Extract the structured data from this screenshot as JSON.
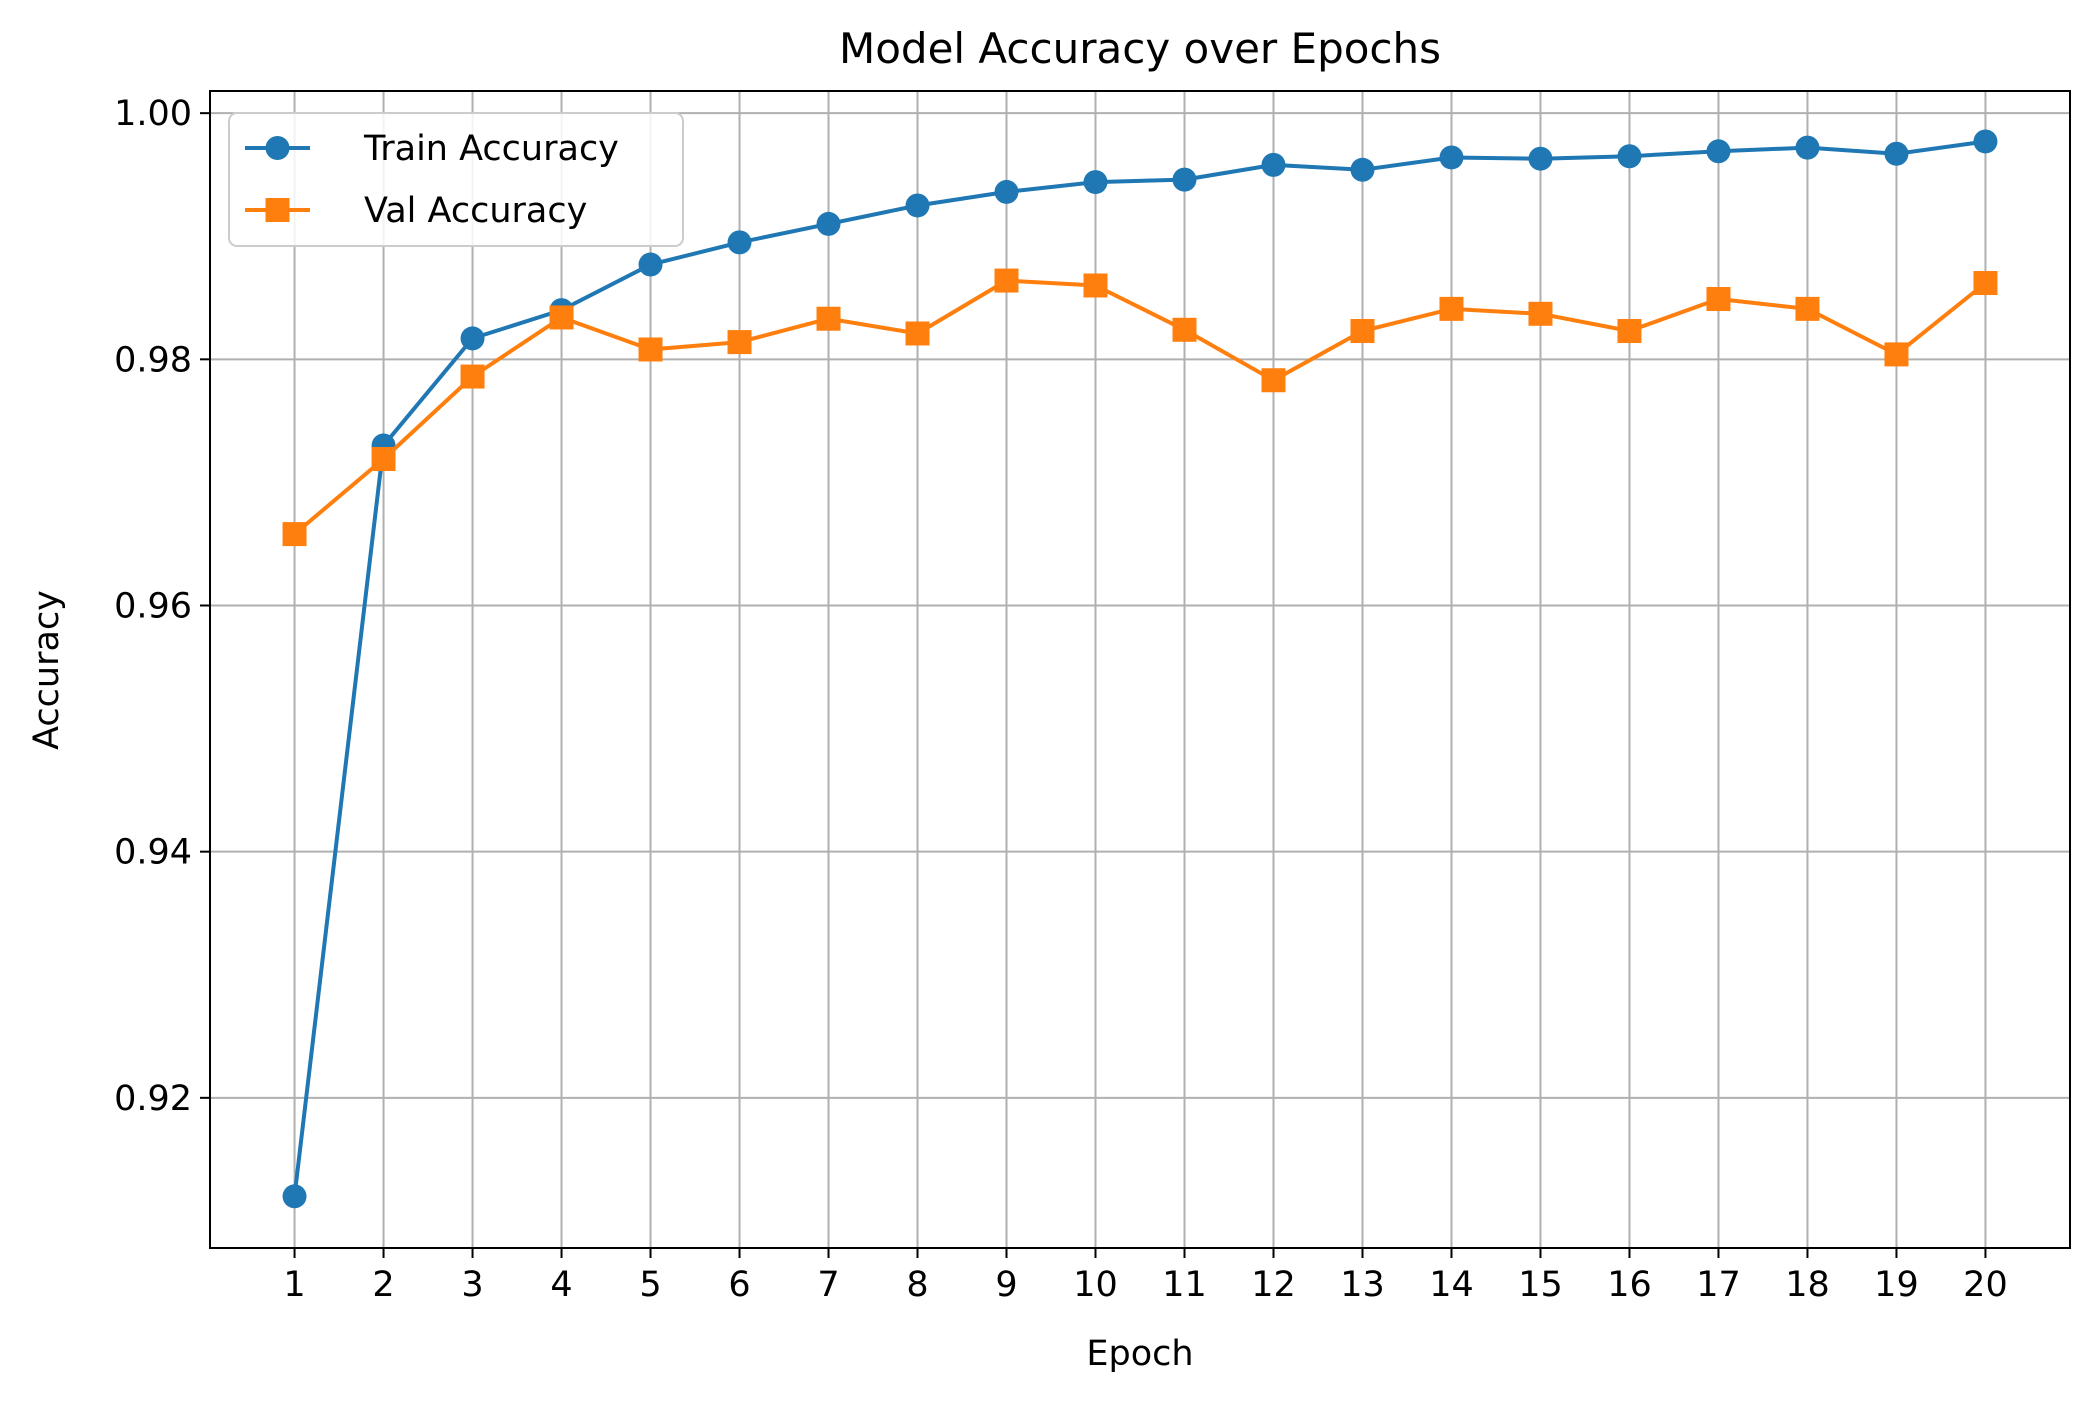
{
  "chart_data": {
    "type": "line",
    "title": "Model Accuracy over Epochs",
    "xlabel": "Epoch",
    "ylabel": "Accuracy",
    "x": [
      1,
      2,
      3,
      4,
      5,
      6,
      7,
      8,
      9,
      10,
      11,
      12,
      13,
      14,
      15,
      16,
      17,
      18,
      19,
      20
    ],
    "xlim": [
      0.05,
      20.95
    ],
    "ylim": [
      0.9078,
      1.0018
    ],
    "yticks": [
      0.92,
      0.94,
      0.96,
      0.98,
      1.0
    ],
    "ytick_labels": [
      "0.92",
      "0.94",
      "0.96",
      "0.98",
      "1.00"
    ],
    "grid": true,
    "legend_position": "top-left",
    "series": [
      {
        "name": "Train Accuracy",
        "color": "#1f77b4",
        "marker": "circle",
        "values": [
          0.912,
          0.973,
          0.9817,
          0.984,
          0.9877,
          0.9895,
          0.991,
          0.9925,
          0.9936,
          0.9944,
          0.9946,
          0.9958,
          0.9954,
          0.9964,
          0.9963,
          0.9965,
          0.9969,
          0.9972,
          0.9967,
          0.9977
        ]
      },
      {
        "name": "Val Accuracy",
        "color": "#ff7f0e",
        "marker": "square",
        "values": [
          0.9658,
          0.9719,
          0.9786,
          0.9834,
          0.9808,
          0.9814,
          0.9833,
          0.9821,
          0.9864,
          0.986,
          0.9824,
          0.9783,
          0.9823,
          0.9841,
          0.9837,
          0.9823,
          0.9849,
          0.9841,
          0.9804,
          0.9862
        ]
      }
    ]
  }
}
